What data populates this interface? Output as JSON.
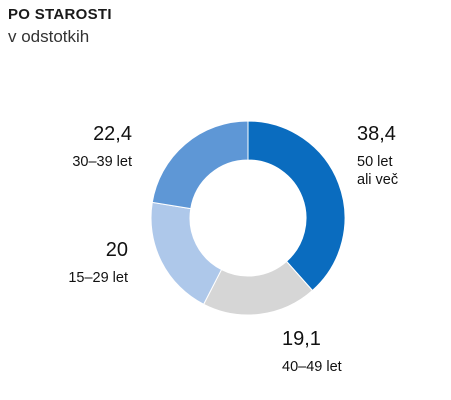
{
  "header": {
    "title": "PO STAROSTI",
    "subtitle": "v odstotkih"
  },
  "chart_data": {
    "type": "pie",
    "donut": true,
    "slices": [
      {
        "category": "50 let ali več",
        "label_lines": [
          "50 let",
          "ali več"
        ],
        "value": 38.4,
        "value_label": "38,4",
        "color": "#0a6cbf"
      },
      {
        "category": "40–49 let",
        "label_lines": [
          "40–49 let"
        ],
        "value": 19.1,
        "value_label": "19,1",
        "color": "#d6d6d6"
      },
      {
        "category": "15–29 let",
        "label_lines": [
          "15–29 let"
        ],
        "value": 20,
        "value_label": "20",
        "color": "#aec8ea"
      },
      {
        "category": "30–39 let",
        "label_lines": [
          "30–39 let"
        ],
        "value": 22.4,
        "value_label": "22,4",
        "color": "#5e97d6"
      }
    ]
  }
}
